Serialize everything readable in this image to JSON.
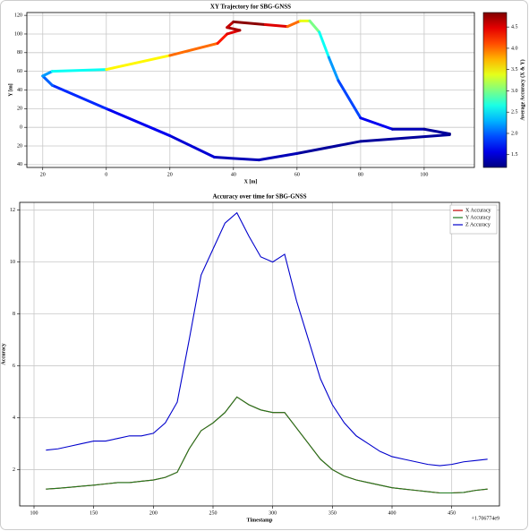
{
  "chart_data": [
    {
      "type": "line",
      "title": "XY Trajectory for SBG-GNSS",
      "xlabel": "X [m]",
      "ylabel": "Y [m]",
      "x": [
        108,
        80,
        60,
        48,
        34,
        20,
        0,
        -17,
        -20,
        -17,
        0,
        20,
        35,
        38,
        42,
        38,
        40,
        50,
        57,
        61,
        64,
        67,
        70,
        73,
        80,
        90,
        100,
        108
      ],
      "values": [
        -8,
        -15,
        -28,
        -35,
        -32,
        -9,
        20,
        45,
        55,
        60,
        62,
        77,
        90,
        100,
        104,
        107,
        113,
        110,
        108,
        114,
        114,
        102,
        75,
        50,
        10,
        -2,
        -2,
        -7
      ],
      "color_values": [
        1.3,
        1.3,
        1.4,
        1.4,
        1.5,
        1.6,
        1.8,
        2.0,
        2.2,
        2.6,
        3.5,
        4.0,
        4.3,
        4.5,
        4.7,
        4.6,
        4.8,
        4.5,
        4.0,
        3.4,
        3.0,
        2.6,
        2.2,
        1.9,
        1.6,
        1.4,
        1.3,
        1.2
      ],
      "colormap": "jet",
      "colorbar_label": "Average Accuracy (X & Y)",
      "clim": [
        1.2,
        4.84
      ],
      "colorbar_ticks": [
        1.5,
        {
          "value": 2,
          "label": "2.0"
        },
        2.5,
        {
          "value": 3,
          "label": "3.0"
        },
        3.5,
        {
          "value": 4,
          "label": "4.0"
        },
        4.5
      ],
      "xlim": [
        -25,
        115.8
      ],
      "ylim": [
        -43,
        123
      ],
      "xticks": [
        {
          "value": -20,
          "label": "20"
        },
        0,
        20,
        40,
        60,
        80,
        100
      ],
      "yticks": [
        120,
        100,
        80,
        60,
        40,
        20,
        0,
        {
          "value": -20,
          "label": "20"
        },
        {
          "value": -40,
          "label": "40"
        }
      ],
      "grid": true
    },
    {
      "type": "line",
      "title": "Accuracy over time for SBG-GNSS",
      "xlabel": "Timestamp",
      "ylabel": "Accuracy",
      "x_offset_label": "+1.706774e9",
      "x": [
        110,
        120,
        130,
        140,
        150,
        160,
        170,
        180,
        190,
        200,
        210,
        220,
        230,
        240,
        250,
        260,
        270,
        280,
        290,
        300,
        310,
        320,
        330,
        340,
        350,
        360,
        370,
        380,
        390,
        400,
        410,
        420,
        430,
        440,
        450,
        460,
        470,
        480
      ],
      "series": [
        {
          "name": "X Accuracy",
          "color": "#c00000",
          "values": [
            1.25,
            1.28,
            1.32,
            1.36,
            1.4,
            1.45,
            1.5,
            1.5,
            1.55,
            1.6,
            1.7,
            1.9,
            2.8,
            3.5,
            3.8,
            4.2,
            4.8,
            4.5,
            4.3,
            4.2,
            4.2,
            3.6,
            3.0,
            2.4,
            2.0,
            1.75,
            1.6,
            1.5,
            1.4,
            1.3,
            1.25,
            1.2,
            1.15,
            1.1,
            1.1,
            1.12,
            1.2,
            1.25
          ]
        },
        {
          "name": "Y Accuracy",
          "color": "#1e7a1e",
          "values": [
            1.25,
            1.28,
            1.32,
            1.36,
            1.4,
            1.45,
            1.5,
            1.5,
            1.55,
            1.6,
            1.7,
            1.9,
            2.8,
            3.5,
            3.8,
            4.2,
            4.8,
            4.5,
            4.3,
            4.2,
            4.2,
            3.6,
            3.0,
            2.4,
            2.0,
            1.75,
            1.6,
            1.5,
            1.4,
            1.3,
            1.25,
            1.2,
            1.15,
            1.1,
            1.1,
            1.12,
            1.2,
            1.25
          ]
        },
        {
          "name": "Z Accuracy",
          "color": "#0000cc",
          "values": [
            2.75,
            2.8,
            2.9,
            3.0,
            3.1,
            3.1,
            3.2,
            3.3,
            3.3,
            3.4,
            3.8,
            4.6,
            7.0,
            9.5,
            10.5,
            11.5,
            11.9,
            11.0,
            10.2,
            10.0,
            10.3,
            8.5,
            7.0,
            5.5,
            4.5,
            3.8,
            3.3,
            3.0,
            2.7,
            2.5,
            2.4,
            2.3,
            2.2,
            2.15,
            2.2,
            2.3,
            2.35,
            2.4
          ]
        }
      ],
      "xlim": [
        88,
        490
      ],
      "ylim": [
        0.6,
        12.3
      ],
      "xticks": [
        100,
        150,
        200,
        250,
        300,
        350,
        400,
        450
      ],
      "yticks": [
        2,
        4,
        6,
        8,
        10,
        12
      ],
      "grid": true,
      "legend": "upper right"
    }
  ]
}
